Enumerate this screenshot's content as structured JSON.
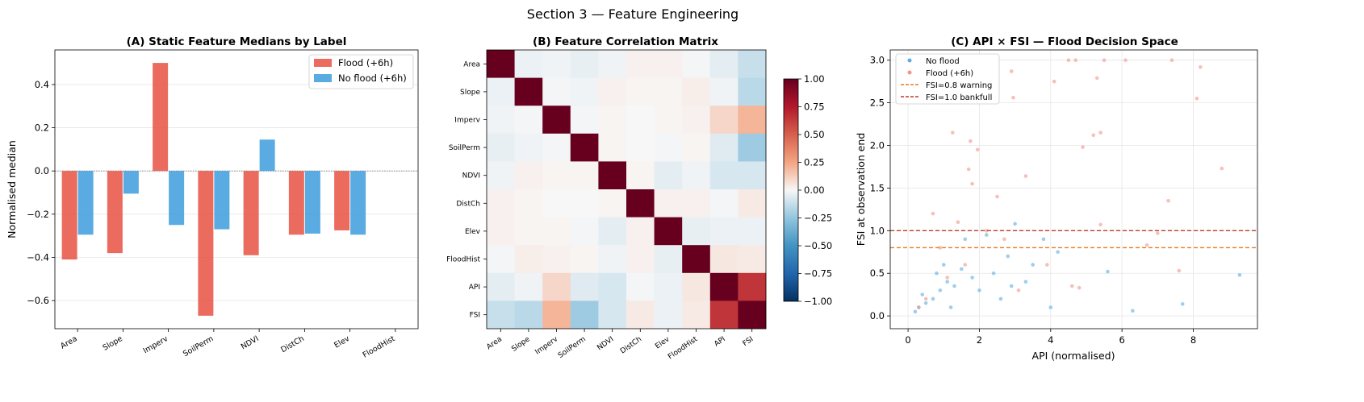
{
  "figure_title": "Section 3 — Feature Engineering",
  "chart_data": [
    {
      "id": "A",
      "type": "bar",
      "title": "(A) Static Feature Medians by Label",
      "xlabel": "",
      "ylabel": "Normalised median",
      "categories": [
        "Area",
        "Slope",
        "Imperv",
        "SoilPerm",
        "NDVI",
        "DistCh",
        "Elev",
        "FloodHist"
      ],
      "series": [
        {
          "name": "Flood (+6h)",
          "color": "#e74c3c",
          "values": [
            -0.41,
            -0.38,
            0.5,
            -0.67,
            -0.39,
            -0.295,
            -0.275,
            0
          ]
        },
        {
          "name": "No flood (+6h)",
          "color": "#3498db",
          "values": [
            -0.295,
            -0.105,
            -0.25,
            -0.27,
            0.145,
            -0.29,
            -0.295,
            0
          ]
        }
      ],
      "ylim": [
        -0.73,
        0.56
      ],
      "yticks": [
        -0.6,
        -0.4,
        -0.2,
        0.0,
        0.2,
        0.4
      ],
      "ytick_labels": [
        "−0.6",
        "−0.4",
        "−0.2",
        "0.0",
        "0.2",
        "0.4"
      ],
      "legend_position": "top-right",
      "grid": "horizontal"
    },
    {
      "id": "B",
      "type": "heatmap",
      "title": "(B) Feature Correlation Matrix",
      "labels": [
        "Area",
        "Slope",
        "Imperv",
        "SoilPerm",
        "NDVI",
        "DistCh",
        "Elev",
        "FloodHist",
        "API",
        "FSI"
      ],
      "matrix": [
        [
          1.0,
          -0.03,
          -0.02,
          -0.04,
          -0.02,
          0.02,
          0.02,
          -0.01,
          -0.05,
          -0.12
        ],
        [
          -0.03,
          1.0,
          -0.01,
          -0.02,
          0.02,
          0.01,
          0.01,
          0.03,
          -0.02,
          -0.15
        ],
        [
          -0.02,
          -0.01,
          1.0,
          -0.01,
          0.01,
          0.0,
          0.01,
          0.02,
          0.1,
          0.2
        ],
        [
          -0.04,
          -0.02,
          -0.01,
          1.0,
          0.01,
          0.0,
          -0.01,
          0.01,
          -0.06,
          -0.22
        ],
        [
          -0.02,
          0.02,
          0.01,
          0.01,
          1.0,
          0.01,
          -0.05,
          -0.02,
          -0.08,
          -0.08
        ],
        [
          0.02,
          0.01,
          0.0,
          0.0,
          0.01,
          1.0,
          0.02,
          0.02,
          -0.01,
          0.04
        ],
        [
          0.02,
          0.01,
          0.01,
          -0.01,
          -0.05,
          0.02,
          1.0,
          -0.04,
          -0.03,
          -0.03
        ],
        [
          -0.01,
          0.03,
          0.02,
          0.01,
          -0.02,
          0.02,
          -0.04,
          1.0,
          0.05,
          0.04
        ],
        [
          -0.05,
          -0.02,
          0.1,
          -0.06,
          -0.08,
          -0.01,
          -0.03,
          0.05,
          1.0,
          0.65
        ],
        [
          -0.12,
          -0.15,
          0.2,
          -0.22,
          -0.08,
          0.04,
          -0.03,
          0.04,
          0.65,
          1.0
        ]
      ],
      "colormap": "RdBu_r",
      "vmin": -1.0,
      "vmax": 1.0,
      "colorbar_ticks": [
        1.0,
        0.75,
        0.5,
        0.25,
        0.0,
        -0.25,
        -0.5,
        -0.75,
        -1.0
      ],
      "colorbar_tick_labels": [
        "1.00",
        "0.75",
        "0.50",
        "0.25",
        "0.00",
        "−0.25",
        "−0.50",
        "−0.75",
        "−1.00"
      ]
    },
    {
      "id": "C",
      "type": "scatter",
      "title": "(C) API × FSI — Flood Decision Space",
      "xlabel": "API (normalised)",
      "ylabel": "FSI at observation end",
      "xlim": [
        -0.5,
        9.8
      ],
      "ylim": [
        -0.15,
        3.12
      ],
      "xticks": [
        0,
        2,
        4,
        6,
        8
      ],
      "xtick_labels": [
        "0",
        "2",
        "4",
        "6",
        "8"
      ],
      "yticks": [
        0.0,
        0.5,
        1.0,
        1.5,
        2.0,
        2.5,
        3.0
      ],
      "ytick_labels": [
        "0.0",
        "0.5",
        "1.0",
        "1.5",
        "2.0",
        "2.5",
        "3.0"
      ],
      "grid": true,
      "legend_position": "top-left",
      "series": [
        {
          "name": "No flood",
          "color": "#5dade2",
          "points": [
            [
              0.2,
              0.05
            ],
            [
              0.3,
              0.1
            ],
            [
              0.5,
              0.15
            ],
            [
              0.7,
              0.2
            ],
            [
              0.9,
              0.3
            ],
            [
              1.1,
              0.4
            ],
            [
              1.3,
              0.35
            ],
            [
              1.5,
              0.55
            ],
            [
              1.8,
              0.45
            ],
            [
              2.0,
              0.3
            ],
            [
              2.4,
              0.5
            ],
            [
              2.8,
              0.7
            ],
            [
              3.0,
              1.08
            ],
            [
              3.3,
              0.4
            ],
            [
              3.8,
              0.9
            ],
            [
              4.0,
              0.1
            ],
            [
              4.2,
              0.75
            ],
            [
              5.6,
              0.52
            ],
            [
              6.3,
              0.06
            ],
            [
              7.7,
              0.14
            ],
            [
              9.3,
              0.48
            ],
            [
              1.6,
              0.9
            ],
            [
              2.2,
              0.95
            ],
            [
              1.0,
              0.6
            ],
            [
              0.4,
              0.25
            ],
            [
              2.6,
              0.2
            ],
            [
              3.5,
              0.6
            ],
            [
              1.2,
              0.1
            ],
            [
              0.8,
              0.5
            ],
            [
              2.9,
              0.35
            ]
          ]
        },
        {
          "name": "Flood (+6h)",
          "color": "#f1948a",
          "points": [
            [
              4.5,
              3.0
            ],
            [
              4.7,
              3.0
            ],
            [
              5.5,
              3.0
            ],
            [
              6.1,
              3.0
            ],
            [
              7.4,
              3.0
            ],
            [
              8.2,
              2.92
            ],
            [
              5.3,
              2.79
            ],
            [
              4.1,
              2.75
            ],
            [
              8.1,
              2.55
            ],
            [
              2.95,
              2.56
            ],
            [
              2.9,
              2.87
            ],
            [
              1.75,
              2.05
            ],
            [
              1.95,
              1.95
            ],
            [
              1.7,
              1.72
            ],
            [
              3.3,
              1.64
            ],
            [
              8.8,
              1.73
            ],
            [
              4.9,
              1.98
            ],
            [
              5.2,
              2.12
            ],
            [
              5.4,
              2.15
            ],
            [
              7.3,
              1.35
            ],
            [
              1.25,
              2.15
            ],
            [
              1.8,
              1.55
            ],
            [
              2.5,
              1.4
            ],
            [
              0.7,
              1.2
            ],
            [
              1.4,
              1.1
            ],
            [
              5.4,
              1.07
            ],
            [
              7.0,
              0.97
            ],
            [
              6.7,
              0.83
            ],
            [
              7.6,
              0.53
            ],
            [
              4.6,
              0.35
            ],
            [
              4.8,
              0.33
            ],
            [
              3.9,
              0.6
            ],
            [
              2.2,
              1.0
            ],
            [
              0.9,
              0.8
            ],
            [
              1.6,
              0.6
            ],
            [
              3.1,
              0.3
            ],
            [
              0.5,
              0.2
            ],
            [
              1.1,
              0.45
            ],
            [
              2.7,
              0.9
            ],
            [
              0.3,
              0.1
            ]
          ]
        }
      ],
      "hlines": [
        {
          "name": "FSI=0.8 warning",
          "y": 0.8,
          "color": "#e67e22"
        },
        {
          "name": "FSI=1.0 bankfull",
          "y": 1.0,
          "color": "#c0392b"
        }
      ]
    }
  ]
}
